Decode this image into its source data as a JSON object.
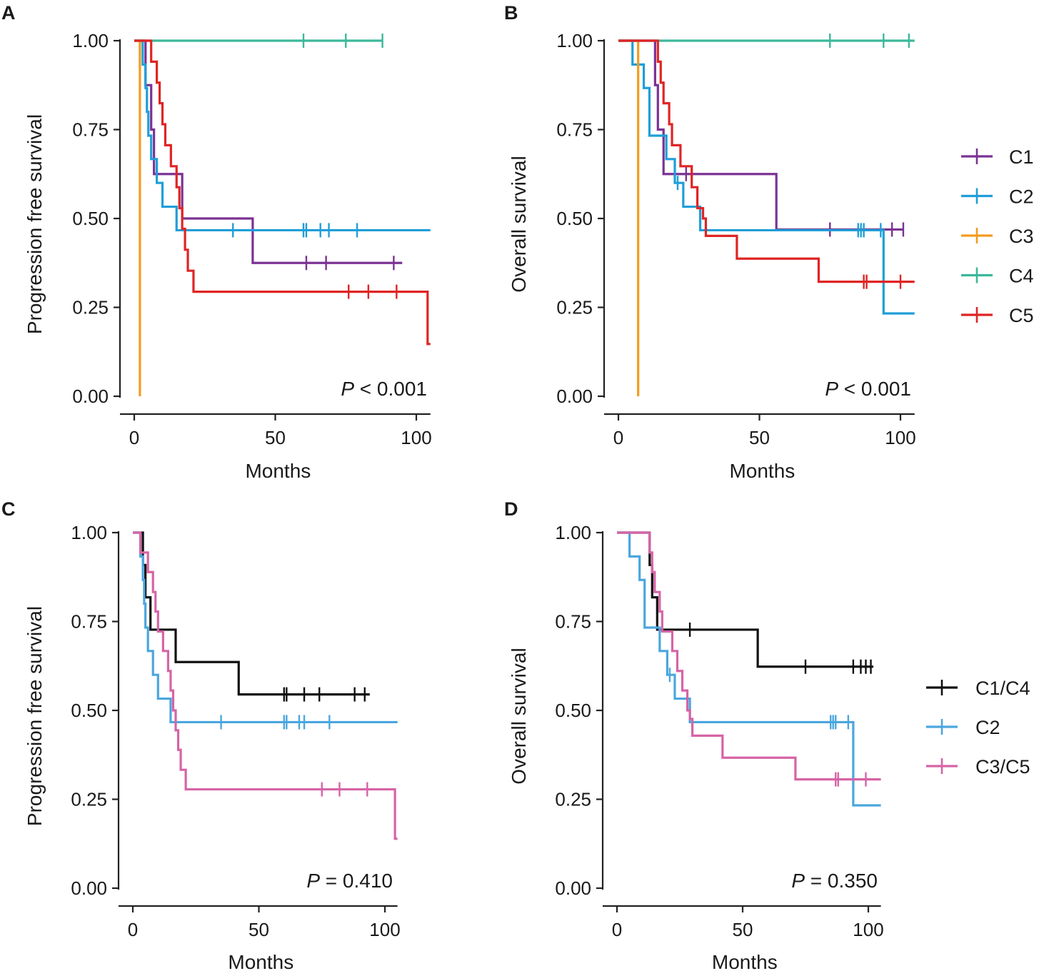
{
  "chart_data": [
    {
      "panel": "A",
      "type": "line",
      "subtype": "kaplan-meier",
      "xlabel": "Months",
      "ylabel": "Progression free survival",
      "xlim": [
        0,
        105
      ],
      "ylim": [
        0,
        1
      ],
      "xticks": [
        0,
        50,
        100
      ],
      "xtick_labels": [
        "0",
        "50",
        "100"
      ],
      "yticks": [
        0,
        0.25,
        0.5,
        0.75,
        1
      ],
      "ytick_labels": [
        "0.00",
        "0.25",
        "0.50",
        "0.75",
        "1.00"
      ],
      "p_label": "P",
      "p_text": " < 0.001",
      "series": [
        {
          "name": "C1",
          "color": "#7B3294",
          "steps": [
            [
              0,
              1
            ],
            [
              4,
              0.875
            ],
            [
              6,
              0.75
            ],
            [
              7,
              0.625
            ],
            [
              17,
              0.5
            ],
            [
              42,
              0.375
            ],
            [
              95,
              0.375
            ]
          ],
          "censor": [
            [
              61,
              0.375
            ],
            [
              68,
              0.375
            ],
            [
              92,
              0.375
            ]
          ]
        },
        {
          "name": "C2",
          "color": "#1F9ED8",
          "steps": [
            [
              0,
              1
            ],
            [
              3,
              0.933
            ],
            [
              4,
              0.867
            ],
            [
              4.5,
              0.8
            ],
            [
              5,
              0.733
            ],
            [
              6,
              0.667
            ],
            [
              8,
              0.6
            ],
            [
              10,
              0.533
            ],
            [
              15,
              0.467
            ],
            [
              105,
              0.467
            ]
          ],
          "censor": [
            [
              35,
              0.467
            ],
            [
              60,
              0.467
            ],
            [
              61,
              0.467
            ],
            [
              66,
              0.467
            ],
            [
              69,
              0.467
            ],
            [
              79,
              0.467
            ]
          ]
        },
        {
          "name": "C3",
          "color": "#F39C1E",
          "steps": [
            [
              0,
              1
            ],
            [
              2,
              0
            ],
            [
              2,
              0
            ]
          ],
          "censor": []
        },
        {
          "name": "C4",
          "color": "#3CB89A",
          "steps": [
            [
              0,
              1
            ],
            [
              88,
              1
            ]
          ],
          "censor": [
            [
              60,
              1
            ],
            [
              75,
              1
            ],
            [
              88,
              1
            ]
          ]
        },
        {
          "name": "C5",
          "color": "#E02424",
          "steps": [
            [
              0,
              1
            ],
            [
              6,
              0.941
            ],
            [
              8,
              0.882
            ],
            [
              9,
              0.824
            ],
            [
              10,
              0.765
            ],
            [
              11,
              0.706
            ],
            [
              13,
              0.647
            ],
            [
              15,
              0.588
            ],
            [
              16,
              0.529
            ],
            [
              17,
              0.471
            ],
            [
              18,
              0.412
            ],
            [
              19,
              0.353
            ],
            [
              21,
              0.294
            ],
            [
              104,
              0.294
            ],
            [
              104,
              0.147
            ],
            [
              105,
              0.147
            ]
          ],
          "censor": [
            [
              76,
              0.294
            ],
            [
              83,
              0.294
            ],
            [
              93,
              0.294
            ]
          ]
        }
      ]
    },
    {
      "panel": "B",
      "type": "line",
      "subtype": "kaplan-meier",
      "xlabel": "Months",
      "ylabel": "Overall survival",
      "xlim": [
        0,
        105
      ],
      "ylim": [
        0,
        1
      ],
      "xticks": [
        0,
        50,
        100
      ],
      "xtick_labels": [
        "0",
        "50",
        "100"
      ],
      "yticks": [
        0,
        0.25,
        0.5,
        0.75,
        1
      ],
      "ytick_labels": [
        "0.00",
        "0.25",
        "0.50",
        "0.75",
        "1.00"
      ],
      "p_label": "P",
      "p_text": " < 0.001",
      "series": [
        {
          "name": "C1",
          "color": "#7B3294",
          "steps": [
            [
              0,
              1
            ],
            [
              13,
              0.875
            ],
            [
              14,
              0.75
            ],
            [
              16,
              0.625
            ],
            [
              56,
              0.625
            ],
            [
              56,
              0.469
            ],
            [
              101,
              0.469
            ]
          ],
          "censor": [
            [
              24,
              0.625
            ],
            [
              75,
              0.469
            ],
            [
              97,
              0.469
            ],
            [
              101,
              0.469
            ]
          ]
        },
        {
          "name": "C2",
          "color": "#1F9ED8",
          "steps": [
            [
              0,
              1
            ],
            [
              5,
              0.933
            ],
            [
              9,
              0.867
            ],
            [
              11,
              0.733
            ],
            [
              17,
              0.667
            ],
            [
              20,
              0.6
            ],
            [
              23,
              0.533
            ],
            [
              29,
              0.467
            ],
            [
              94,
              0.467
            ],
            [
              94,
              0.233
            ],
            [
              105,
              0.233
            ]
          ],
          "censor": [
            [
              21,
              0.6
            ],
            [
              85,
              0.467
            ],
            [
              86,
              0.467
            ],
            [
              87,
              0.467
            ],
            [
              93,
              0.467
            ]
          ]
        },
        {
          "name": "C3",
          "color": "#F39C1E",
          "steps": [
            [
              0,
              1
            ],
            [
              7,
              0
            ],
            [
              7,
              0
            ]
          ],
          "censor": []
        },
        {
          "name": "C4",
          "color": "#3CB89A",
          "steps": [
            [
              0,
              1
            ],
            [
              103,
              1
            ],
            [
              105,
              1
            ]
          ],
          "censor": [
            [
              75,
              1
            ],
            [
              94,
              1
            ],
            [
              103,
              1
            ]
          ]
        },
        {
          "name": "C5",
          "color": "#E02424",
          "steps": [
            [
              0,
              1
            ],
            [
              14,
              0.941
            ],
            [
              15,
              0.882
            ],
            [
              16,
              0.824
            ],
            [
              18,
              0.765
            ],
            [
              19,
              0.706
            ],
            [
              22,
              0.647
            ],
            [
              26,
              0.588
            ],
            [
              28,
              0.529
            ],
            [
              30,
              0.5
            ],
            [
              31,
              0.451
            ],
            [
              42,
              0.387
            ],
            [
              71,
              0.322
            ],
            [
              105,
              0.322
            ]
          ],
          "censor": [
            [
              87,
              0.322
            ],
            [
              88,
              0.322
            ],
            [
              100,
              0.322
            ]
          ]
        }
      ]
    },
    {
      "panel": "C",
      "type": "line",
      "subtype": "kaplan-meier",
      "xlabel": "Months",
      "ylabel": "Progression free survival",
      "xlim": [
        0,
        105
      ],
      "ylim": [
        0,
        1
      ],
      "xticks": [
        0,
        50,
        100
      ],
      "xtick_labels": [
        "0",
        "50",
        "100"
      ],
      "yticks": [
        0,
        0.25,
        0.5,
        0.75,
        1
      ],
      "ytick_labels": [
        "0.00",
        "0.25",
        "0.50",
        "0.75",
        "1.00"
      ],
      "p_label": "P",
      "p_text": " = 0.410",
      "series": [
        {
          "name": "C1/C4",
          "color": "#111111",
          "steps": [
            [
              0,
              1
            ],
            [
              4,
              0.909
            ],
            [
              5,
              0.818
            ],
            [
              7,
              0.727
            ],
            [
              17,
              0.636
            ],
            [
              42,
              0.545
            ],
            [
              94,
              0.545
            ]
          ],
          "censor": [
            [
              60,
              0.545
            ],
            [
              61,
              0.545
            ],
            [
              68,
              0.545
            ],
            [
              74,
              0.545
            ],
            [
              88,
              0.545
            ],
            [
              92,
              0.545
            ]
          ]
        },
        {
          "name": "C2",
          "color": "#4BA6DE",
          "steps": [
            [
              0,
              1
            ],
            [
              3,
              0.933
            ],
            [
              4,
              0.867
            ],
            [
              4.5,
              0.8
            ],
            [
              5,
              0.733
            ],
            [
              6,
              0.667
            ],
            [
              8,
              0.6
            ],
            [
              10,
              0.533
            ],
            [
              15,
              0.467
            ],
            [
              105,
              0.467
            ]
          ],
          "censor": [
            [
              35,
              0.467
            ],
            [
              60,
              0.467
            ],
            [
              61,
              0.467
            ],
            [
              66,
              0.467
            ],
            [
              68,
              0.467
            ],
            [
              78,
              0.467
            ]
          ]
        },
        {
          "name": "C3/C5",
          "color": "#D664A6",
          "steps": [
            [
              0,
              1
            ],
            [
              3,
              0.944
            ],
            [
              6,
              0.889
            ],
            [
              8,
              0.833
            ],
            [
              9,
              0.778
            ],
            [
              10,
              0.722
            ],
            [
              12,
              0.667
            ],
            [
              14,
              0.611
            ],
            [
              15,
              0.556
            ],
            [
              16,
              0.5
            ],
            [
              17,
              0.444
            ],
            [
              18,
              0.389
            ],
            [
              19,
              0.333
            ],
            [
              21,
              0.278
            ],
            [
              104,
              0.278
            ],
            [
              104,
              0.139
            ],
            [
              105,
              0.139
            ]
          ],
          "censor": [
            [
              75,
              0.278
            ],
            [
              82,
              0.278
            ],
            [
              93,
              0.278
            ]
          ]
        }
      ]
    },
    {
      "panel": "D",
      "type": "line",
      "subtype": "kaplan-meier",
      "xlabel": "Months",
      "ylabel": "Overall survival",
      "xlim": [
        0,
        105
      ],
      "ylim": [
        0,
        1
      ],
      "xticks": [
        0,
        50,
        100
      ],
      "xtick_labels": [
        "0",
        "50",
        "100"
      ],
      "yticks": [
        0,
        0.25,
        0.5,
        0.75,
        1
      ],
      "ytick_labels": [
        "0.00",
        "0.25",
        "0.50",
        "0.75",
        "1.00"
      ],
      "p_label": "P",
      "p_text": " = 0.350",
      "series": [
        {
          "name": "C1/C4",
          "color": "#111111",
          "steps": [
            [
              0,
              1
            ],
            [
              13,
              0.909
            ],
            [
              14,
              0.818
            ],
            [
              16,
              0.727
            ],
            [
              56,
              0.727
            ],
            [
              56,
              0.623
            ],
            [
              102,
              0.623
            ]
          ],
          "censor": [
            [
              29,
              0.727
            ],
            [
              75,
              0.623
            ],
            [
              94,
              0.623
            ],
            [
              97,
              0.623
            ],
            [
              99,
              0.623
            ],
            [
              101,
              0.623
            ]
          ]
        },
        {
          "name": "C2",
          "color": "#4BA6DE",
          "steps": [
            [
              0,
              1
            ],
            [
              5,
              0.933
            ],
            [
              9,
              0.867
            ],
            [
              11,
              0.733
            ],
            [
              17,
              0.667
            ],
            [
              20,
              0.6
            ],
            [
              23,
              0.533
            ],
            [
              29,
              0.467
            ],
            [
              94,
              0.467
            ],
            [
              94,
              0.233
            ],
            [
              105,
              0.233
            ]
          ],
          "censor": [
            [
              21,
              0.6
            ],
            [
              85,
              0.467
            ],
            [
              86,
              0.467
            ],
            [
              87,
              0.467
            ],
            [
              92,
              0.467
            ]
          ]
        },
        {
          "name": "C3/C5",
          "color": "#D664A6",
          "steps": [
            [
              0,
              1
            ],
            [
              13,
              0.944
            ],
            [
              14,
              0.889
            ],
            [
              15,
              0.833
            ],
            [
              17,
              0.778
            ],
            [
              18,
              0.722
            ],
            [
              22,
              0.667
            ],
            [
              24,
              0.611
            ],
            [
              26,
              0.556
            ],
            [
              28,
              0.5
            ],
            [
              29,
              0.476
            ],
            [
              30,
              0.429
            ],
            [
              42,
              0.367
            ],
            [
              71,
              0.306
            ],
            [
              105,
              0.306
            ]
          ],
          "censor": [
            [
              87,
              0.306
            ],
            [
              88,
              0.306
            ],
            [
              99,
              0.306
            ]
          ]
        }
      ]
    }
  ],
  "legends": [
    {
      "for_panels": "A-B",
      "items": [
        "C1",
        "C2",
        "C3",
        "C4",
        "C5"
      ],
      "colors": [
        "#7B3294",
        "#1F9ED8",
        "#F39C1E",
        "#3CB89A",
        "#E02424"
      ]
    },
    {
      "for_panels": "C-D",
      "items": [
        "C1/C4",
        "C2",
        "C3/C5"
      ],
      "colors": [
        "#111111",
        "#4BA6DE",
        "#D664A6"
      ]
    }
  ]
}
